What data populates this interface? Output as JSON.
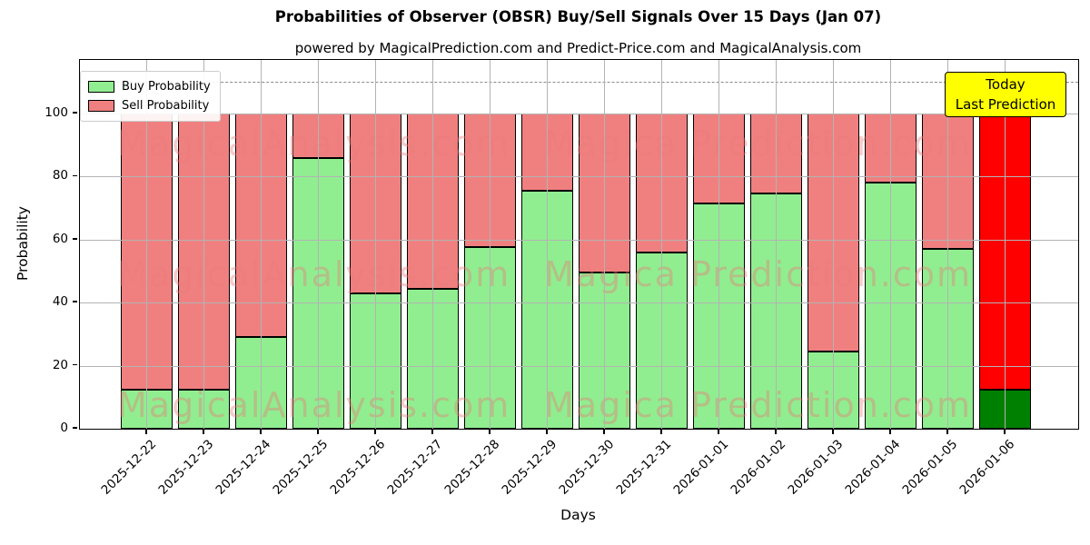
{
  "title": "Probabilities of Observer (OBSR) Buy/Sell Signals Over 15 Days (Jan 07)",
  "subtitle": "powered by MagicalPrediction.com and Predict-Price.com and MagicalAnalysis.com",
  "legend": {
    "buy_label": "Buy Probability",
    "sell_label": "Sell Probability"
  },
  "annotation": {
    "line1": "Today",
    "line2": "Last Prediction"
  },
  "axes": {
    "x_label": "Days",
    "y_label": "Probability",
    "y_ticks": [
      0,
      20,
      40,
      60,
      80,
      100
    ],
    "y_display_max": 117,
    "dashed_line_y": 110,
    "grid": true
  },
  "watermarks": {
    "left_text": "MagicalAnalysis.com",
    "right_text": "Magica Prediction.com"
  },
  "colors": {
    "buy_normal": "#90EE90",
    "sell_normal": "#F08080",
    "buy_today": "#008000",
    "sell_today": "#FF0000",
    "bar_edge": "#000000",
    "annotation_bg": "#FFFF00",
    "grid": "#b3b3b3",
    "watermark": "rgba(236,120,120,0.40)"
  },
  "chart_data": {
    "type": "bar",
    "stacked": true,
    "title": "Probabilities of Observer (OBSR) Buy/Sell Signals Over 15 Days (Jan 07)",
    "xlabel": "Days",
    "ylabel": "Probability",
    "ylim": [
      0,
      117
    ],
    "legend_position": "upper left",
    "grid": "on",
    "dashed_reference_line_y": 110,
    "categories": [
      "2025-12-22",
      "2025-12-23",
      "2025-12-24",
      "2025-12-25",
      "2025-12-26",
      "2025-12-27",
      "2025-12-28",
      "2025-12-29",
      "2025-12-30",
      "2025-12-31",
      "2026-01-01",
      "2026-01-02",
      "2026-01-03",
      "2026-01-04",
      "2026-01-05",
      "2026-01-06"
    ],
    "series": [
      {
        "name": "Buy Probability",
        "values": [
          12.5,
          12.5,
          29,
          86,
          43,
          44.5,
          57.5,
          75.5,
          49.5,
          56,
          71.5,
          74.5,
          24.5,
          78,
          57,
          12.5
        ]
      },
      {
        "name": "Sell Probability",
        "values": [
          87.5,
          87.5,
          71,
          14,
          57,
          55.5,
          42.5,
          24.5,
          50.5,
          44,
          28.5,
          25.5,
          75.5,
          22,
          43,
          87.5
        ]
      }
    ],
    "today_index": 15
  }
}
